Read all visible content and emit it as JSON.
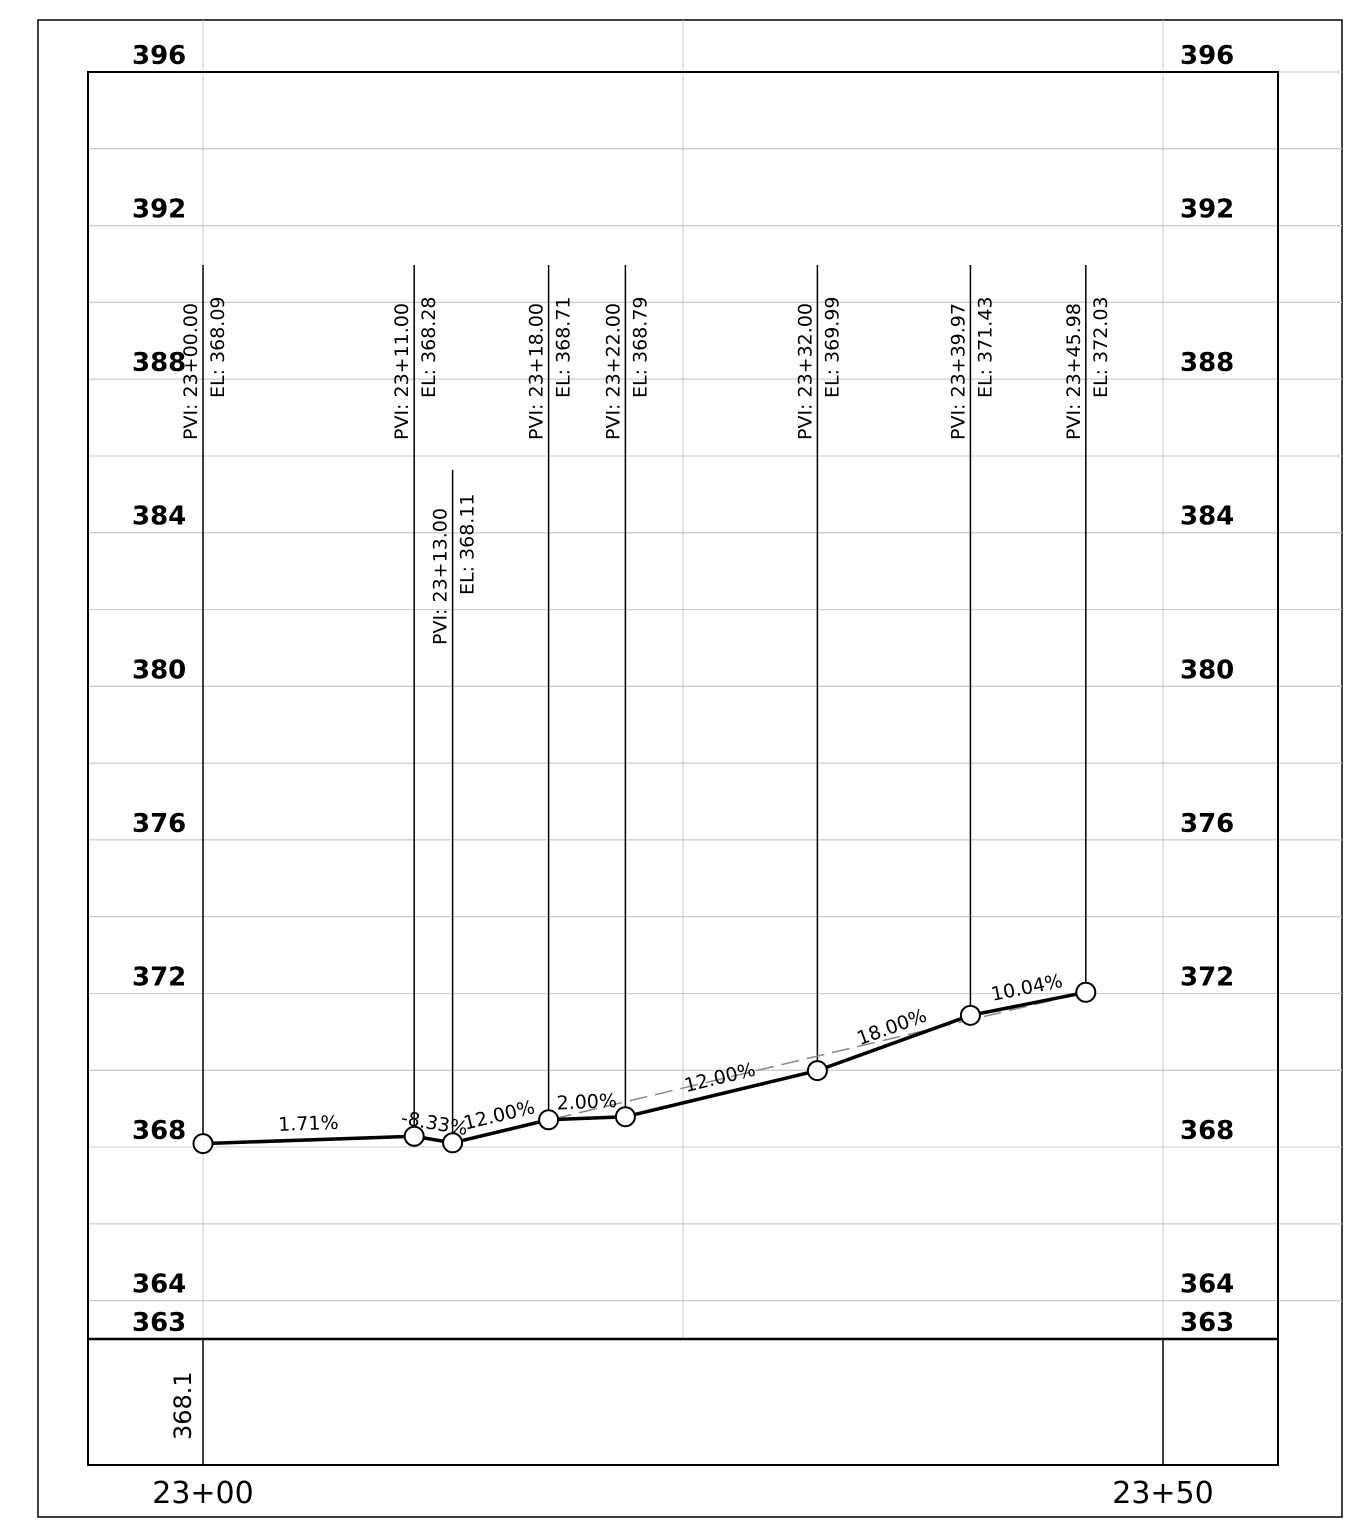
{
  "chart_data": {
    "type": "line",
    "title": "",
    "xlabel": "",
    "ylabel": "",
    "x_unit": "ft",
    "xlim": [
      2300,
      2350
    ],
    "ylim": [
      363,
      396
    ],
    "y_ticks": [
      396,
      392,
      388,
      384,
      380,
      376,
      372,
      368,
      364,
      363
    ],
    "y_tick_labels": [
      "396",
      "392",
      "388",
      "384",
      "380",
      "376",
      "372",
      "368",
      "364",
      "363"
    ],
    "x_tick_labels": [
      {
        "x": 2300,
        "label": "23+00"
      },
      {
        "x": 2350,
        "label": "23+50"
      }
    ],
    "pvis": [
      {
        "x": 2300.0,
        "y": 368.09,
        "station": "PVI:  23+00.00",
        "elev": "EL:  368.09"
      },
      {
        "x": 2311.0,
        "y": 368.28,
        "station": "PVI:  23+11.00",
        "elev": "EL:  368.28"
      },
      {
        "x": 2313.0,
        "y": 368.11,
        "station": "PVI:  23+13.00",
        "elev": "EL:  368.11"
      },
      {
        "x": 2318.0,
        "y": 368.71,
        "station": "PVI:  23+18.00",
        "elev": "EL:  368.71"
      },
      {
        "x": 2322.0,
        "y": 368.79,
        "station": "PVI:  23+22.00",
        "elev": "EL:  368.79"
      },
      {
        "x": 2332.0,
        "y": 369.99,
        "station": "PVI:  23+32.00",
        "elev": "EL:  369.99"
      },
      {
        "x": 2339.97,
        "y": 371.43,
        "station": "PVI:  23+39.97",
        "elev": "EL:  371.43"
      },
      {
        "x": 2345.98,
        "y": 372.03,
        "station": "PVI:  23+45.98",
        "elev": "EL:  372.03"
      }
    ],
    "grades": [
      "1.71%",
      "-8.33%",
      "12.00%",
      "2.00%",
      "12.00%",
      "18.00%",
      "10.04%"
    ],
    "reference_line": [
      {
        "x": 2313.0,
        "y": 368.11
      },
      {
        "x": 2345.98,
        "y": 372.03
      }
    ],
    "band_values": [
      {
        "x": 2300,
        "label": "368.1"
      }
    ],
    "grid": true
  }
}
